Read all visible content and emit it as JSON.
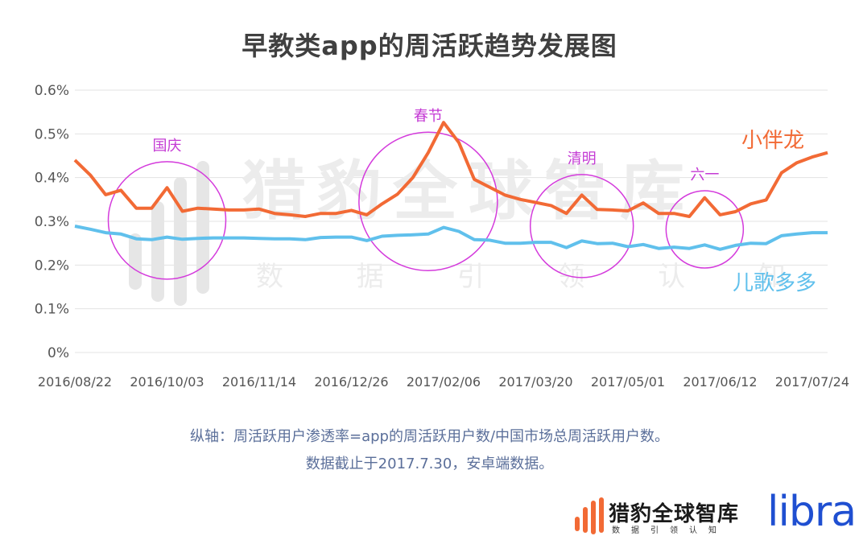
{
  "title": "早教类app的周活跃趋势发展图",
  "notes": [
    "纵轴：周活跃用户渗透率=app的周活跃用户数/中国市场总周活跃用户数。",
    "数据截止于2017.7.30，安卓端数据。"
  ],
  "watermark": {
    "name": "猎豹全球智库",
    "slogan": "数 据 引 领 认 知"
  },
  "footer": {
    "brand": "猎豹全球智库",
    "slogan": "数据引领认知",
    "partner": "libra"
  },
  "chart_data": {
    "type": "line",
    "title": "早教类app的周活跃趋势发展图",
    "ylim": [
      0,
      0.6
    ],
    "yticks": [
      "0%",
      "0.1%",
      "0.2%",
      "0.3%",
      "0.4%",
      "0.5%",
      "0.6%"
    ],
    "xtick_labels": [
      "2016/08/22",
      "2016/10/03",
      "2016/11/14",
      "2016/12/26",
      "2017/02/06",
      "2017/03/20",
      "2017/05/01",
      "2017/06/12",
      "2017/07/24"
    ],
    "x_start": "2016/08/22",
    "x_step": "weekly",
    "grid": true,
    "series": [
      {
        "name": "小伴龙",
        "color": "#f26a35",
        "values": [
          0.44,
          0.406,
          0.361,
          0.371,
          0.33,
          0.33,
          0.377,
          0.323,
          0.33,
          0.328,
          0.326,
          0.326,
          0.328,
          0.318,
          0.315,
          0.311,
          0.318,
          0.318,
          0.325,
          0.315,
          0.34,
          0.362,
          0.4,
          0.457,
          0.526,
          0.48,
          0.396,
          0.378,
          0.36,
          0.35,
          0.343,
          0.336,
          0.318,
          0.36,
          0.327,
          0.326,
          0.324,
          0.342,
          0.318,
          0.318,
          0.311,
          0.354,
          0.315,
          0.322,
          0.34,
          0.349,
          0.411,
          0.434,
          0.447,
          0.457
        ]
      },
      {
        "name": "儿歌多多",
        "color": "#60c0ec",
        "values": [
          0.289,
          0.282,
          0.274,
          0.271,
          0.26,
          0.258,
          0.264,
          0.259,
          0.261,
          0.262,
          0.262,
          0.262,
          0.261,
          0.26,
          0.26,
          0.258,
          0.263,
          0.264,
          0.264,
          0.256,
          0.266,
          0.268,
          0.269,
          0.271,
          0.286,
          0.277,
          0.258,
          0.257,
          0.25,
          0.25,
          0.252,
          0.252,
          0.24,
          0.255,
          0.249,
          0.25,
          0.242,
          0.247,
          0.238,
          0.241,
          0.238,
          0.246,
          0.236,
          0.245,
          0.25,
          0.249,
          0.267,
          0.271,
          0.274,
          0.274
        ]
      }
    ],
    "annotations": [
      {
        "label": "国庆",
        "index": 6
      },
      {
        "label": "春节",
        "index": 23
      },
      {
        "label": "清明",
        "index": 33
      },
      {
        "label": "六一",
        "index": 41
      }
    ]
  }
}
